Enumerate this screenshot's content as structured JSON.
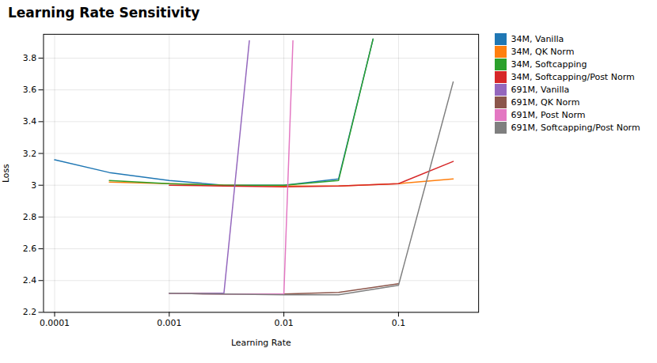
{
  "chart_data": {
    "type": "line",
    "title": "Learning Rate Sensitivity",
    "xlabel": "Learning Rate",
    "ylabel": "Loss",
    "log": "x",
    "xlim": [
      8e-05,
      0.5
    ],
    "xticks": [
      0.0001,
      0.001,
      0.01,
      0.1
    ],
    "ylim": [
      2.2,
      3.95
    ],
    "yticks": [
      2.2,
      2.4,
      2.6,
      2.8,
      3.0,
      3.2,
      3.4,
      3.6,
      3.8
    ],
    "grid": true,
    "legend": "right",
    "series": [
      {
        "name": "34M, Vanilla",
        "color": "#1f77b4",
        "x": [
          0.0001,
          0.0003,
          0.001,
          0.003,
          0.01,
          0.03,
          0.06,
          0.1
        ],
        "values": [
          3.16,
          3.08,
          3.03,
          3.0,
          3.0,
          3.04,
          3.92,
          null
        ]
      },
      {
        "name": "34M, QK Norm",
        "color": "#ff7f0e",
        "x": [
          0.0003,
          0.001,
          0.003,
          0.01,
          0.03,
          0.1,
          0.3
        ],
        "values": [
          3.02,
          3.01,
          3.0,
          2.995,
          2.995,
          3.01,
          3.04
        ]
      },
      {
        "name": "34M, Softcapping",
        "color": "#2ca02c",
        "x": [
          0.0003,
          0.001,
          0.003,
          0.01,
          0.03,
          0.06,
          0.1
        ],
        "values": [
          3.03,
          3.01,
          3.0,
          3.0,
          3.03,
          3.92,
          null
        ]
      },
      {
        "name": "34M, Softcapping/Post Norm",
        "color": "#d62728",
        "x": [
          0.001,
          0.003,
          0.01,
          0.03,
          0.1,
          0.3
        ],
        "values": [
          3.0,
          2.995,
          2.99,
          2.995,
          3.01,
          3.15
        ]
      },
      {
        "name": "691M, Vanilla",
        "color": "#9467bd",
        "x": [
          0.001,
          0.003,
          0.005
        ],
        "values": [
          2.32,
          2.32,
          3.91
        ]
      },
      {
        "name": "691M, QK Norm",
        "color": "#8c564b",
        "x": [
          0.001,
          0.003,
          0.01,
          0.03,
          0.1,
          0.3
        ],
        "values": [
          2.32,
          2.315,
          2.315,
          2.325,
          2.38,
          null
        ]
      },
      {
        "name": "691M, Post Norm",
        "color": "#e377c2",
        "x": [
          0.001,
          0.003,
          0.01,
          0.012
        ],
        "values": [
          2.32,
          2.315,
          2.315,
          3.91
        ]
      },
      {
        "name": "691M, Softcapping/Post Norm",
        "color": "#7f7f7f",
        "x": [
          0.001,
          0.003,
          0.01,
          0.03,
          0.1,
          0.3
        ],
        "values": [
          2.32,
          2.315,
          2.31,
          2.31,
          2.37,
          3.65
        ]
      }
    ]
  }
}
